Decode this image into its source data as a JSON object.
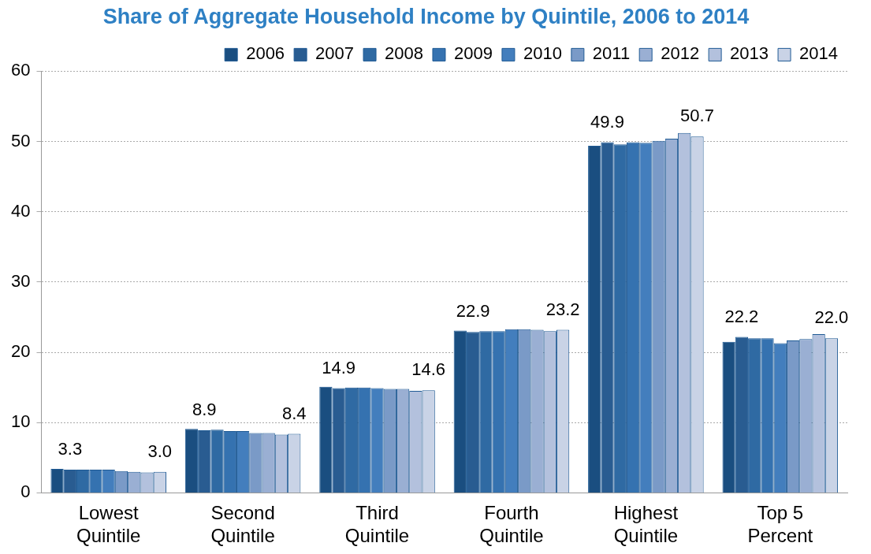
{
  "chart_data": {
    "type": "bar",
    "title": "Share of Aggregate Household Income by Quintile, 2006 to 2014",
    "categories": [
      "Lowest Quintile",
      "Second Quintile",
      "Third Quintile",
      "Fourth Quintile",
      "Highest Quintile",
      "Top 5 Percent"
    ],
    "series": [
      {
        "name": "2006",
        "color": "#1a4e80",
        "values": [
          3.4,
          9.1,
          15.1,
          23.1,
          49.4,
          21.5
        ]
      },
      {
        "name": "2007",
        "color": "#295c91",
        "values": [
          3.3,
          8.9,
          14.9,
          22.9,
          49.9,
          22.2
        ],
        "value_labels": [
          "3.3",
          "8.9",
          "14.9",
          "22.9",
          "49.9",
          "22.2"
        ]
      },
      {
        "name": "2008",
        "color": "#2f6aa3",
        "values": [
          3.3,
          9.0,
          15.0,
          23.0,
          49.6,
          22.0
        ]
      },
      {
        "name": "2009",
        "color": "#3572b0",
        "values": [
          3.3,
          8.8,
          15.0,
          23.0,
          49.9,
          22.0
        ]
      },
      {
        "name": "2010",
        "color": "#437ebd",
        "values": [
          3.3,
          8.8,
          14.9,
          23.3,
          49.8,
          21.3
        ]
      },
      {
        "name": "2011",
        "color": "#7a9ac7",
        "values": [
          3.1,
          8.5,
          14.8,
          23.3,
          50.1,
          21.7
        ]
      },
      {
        "name": "2012",
        "color": "#9aafd3",
        "values": [
          3.0,
          8.5,
          14.8,
          23.2,
          50.4,
          21.9
        ]
      },
      {
        "name": "2013",
        "color": "#b3c1dd",
        "values": [
          2.9,
          8.3,
          14.5,
          23.0,
          51.2,
          22.6
        ]
      },
      {
        "name": "2014",
        "color": "#c9d3e6",
        "values": [
          3.0,
          8.4,
          14.6,
          23.2,
          50.7,
          22.0
        ],
        "value_labels": [
          "3.0",
          "8.4",
          "14.6",
          "23.2",
          "50.7",
          "22.0"
        ]
      }
    ],
    "ylim": [
      0,
      60
    ],
    "yticks": [
      0,
      10,
      20,
      30,
      40,
      50,
      60
    ],
    "grid": "y",
    "legend": "top"
  }
}
